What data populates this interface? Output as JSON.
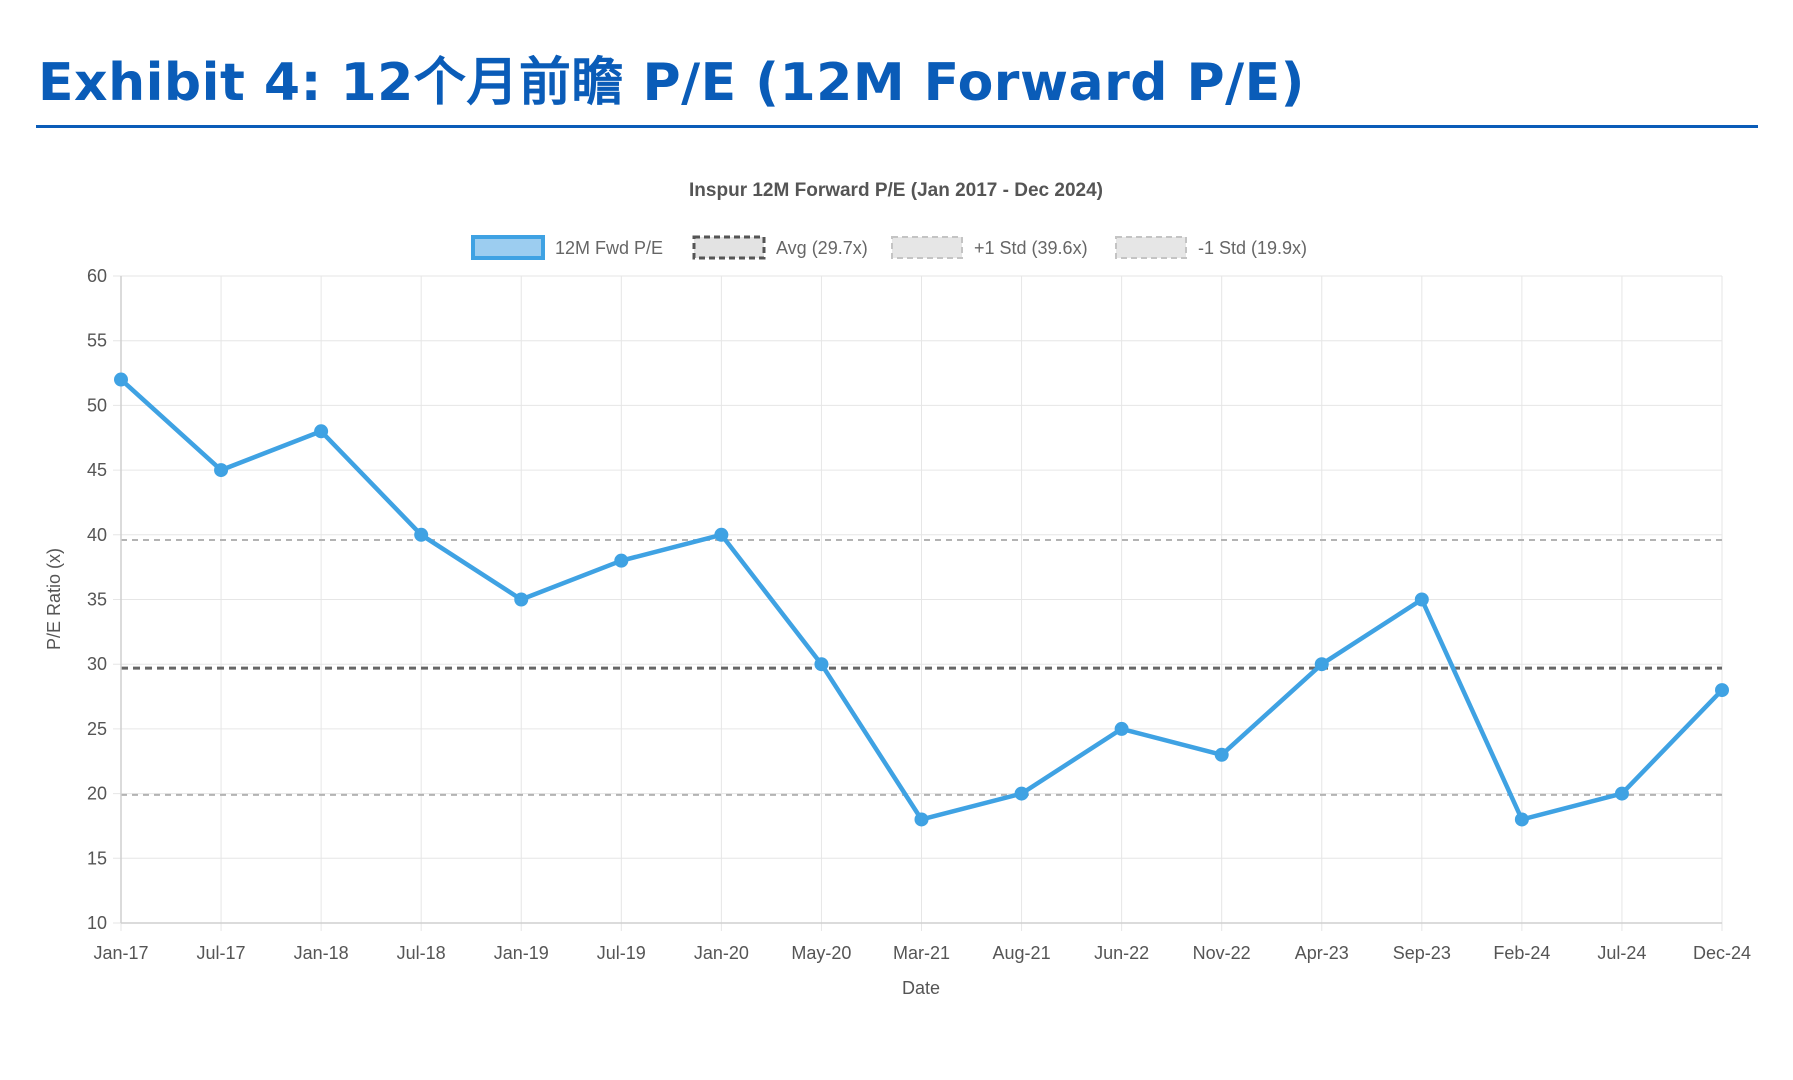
{
  "exhibit": {
    "title": "Exhibit 4: 12个月前瞻 P/E (12M Forward P/E)"
  },
  "colors": {
    "accent": "#0a5cb8",
    "series_line": "#3fa2e3",
    "series_fill": "#9ccdf0",
    "avg_line": "#666666",
    "std_line": "#b3b3b3",
    "grid": "#e6e6e6"
  },
  "chart_data": {
    "type": "line",
    "title": "Inspur 12M Forward P/E (Jan 2017 - Dec 2024)",
    "xlabel": "Date",
    "ylabel": "P/E Ratio (x)",
    "ylim": [
      10,
      60
    ],
    "yticks": [
      10,
      15,
      20,
      25,
      30,
      35,
      40,
      45,
      50,
      55,
      60
    ],
    "grid": true,
    "legend_position": "top-center",
    "categories": [
      "Jan-17",
      "Jul-17",
      "Jan-18",
      "Jul-18",
      "Jan-19",
      "Jul-19",
      "Jan-20",
      "May-20",
      "Mar-21",
      "Aug-21",
      "Jun-22",
      "Nov-22",
      "Apr-23",
      "Sep-23",
      "Feb-24",
      "Jul-24",
      "Dec-24"
    ],
    "series": [
      {
        "name": "12M Fwd P/E",
        "style": "solid",
        "values": [
          52,
          45,
          48,
          40,
          35,
          38,
          40,
          30,
          18,
          20,
          25,
          23,
          30,
          35,
          18,
          20,
          28
        ]
      }
    ],
    "reference_lines": [
      {
        "name": "Avg (29.7x)",
        "value": 29.7,
        "style": "dashed-dark"
      },
      {
        "name": "+1 Std (39.6x)",
        "value": 39.6,
        "style": "dashed-light"
      },
      {
        "name": "-1 Std (19.9x)",
        "value": 19.9,
        "style": "dashed-light"
      }
    ]
  }
}
